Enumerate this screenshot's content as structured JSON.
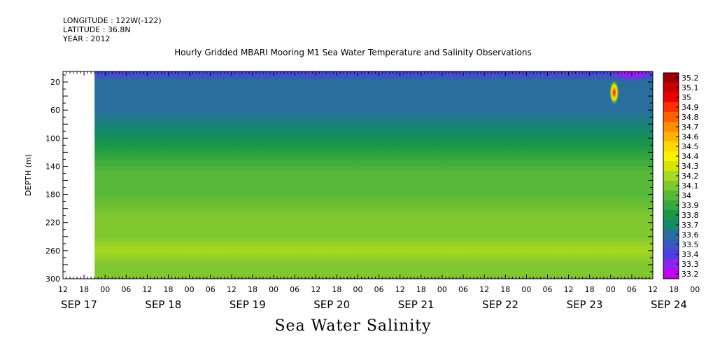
{
  "header": {
    "longitude": "LONGITUDE : 122W(-122)",
    "latitude": "LATITUDE : 36.8N",
    "year": "YEAR : 2012"
  },
  "chart_data": {
    "type": "heatmap",
    "title": "Hourly Gridded MBARI Mooring M1 Sea Water Temperature and Salinity Observations",
    "caption": "Sea Water Salinity",
    "ylabel": "DEPTH (m)",
    "ylim": [
      300,
      5
    ],
    "y_ticks": [
      "20",
      "60",
      "100",
      "140",
      "180",
      "220",
      "260",
      "300"
    ],
    "x_ticks": [
      "12",
      "18",
      "00",
      "06",
      "12",
      "18",
      "00",
      "06",
      "12",
      "18",
      "00",
      "06",
      "12",
      "18",
      "00",
      "06",
      "12",
      "18",
      "00",
      "06",
      "12",
      "18",
      "00",
      "06",
      "12",
      "18",
      "00",
      "06",
      "12",
      "18",
      "00",
      "06",
      "12"
    ],
    "x_dates": [
      "SEP 17",
      "SEP 18",
      "SEP 19",
      "SEP 20",
      "SEP 21",
      "SEP 22",
      "SEP 23",
      "SEP 24"
    ],
    "x_range": [
      "2012-09-17 12:00",
      "2012-09-24 12:00"
    ],
    "data_start": "2012-09-17 21:00",
    "colorbar_ticks": [
      "35.2",
      "35.1",
      "35",
      "34.9",
      "34.8",
      "34.7",
      "34.6",
      "34.5",
      "34.4",
      "34.3",
      "34.2",
      "34.1",
      "34",
      "33.9",
      "33.8",
      "33.7",
      "33.6",
      "33.5",
      "33.4",
      "33.3",
      "33.2"
    ],
    "colorbar_colors": [
      "#9b0000",
      "#c80000",
      "#ee0000",
      "#ff3000",
      "#ff6000",
      "#ff8c00",
      "#ffb400",
      "#ffd800",
      "#fff000",
      "#d6e600",
      "#a8d820",
      "#80c830",
      "#58b838",
      "#38a840",
      "#1a9848",
      "#138a6a",
      "#2a6e9e",
      "#3858c0",
      "#4c3ee0",
      "#8826f0",
      "#c000f0"
    ],
    "depth_profile": [
      {
        "depth": 5,
        "value": 33.45
      },
      {
        "depth": 20,
        "value": 33.58
      },
      {
        "depth": 60,
        "value": 33.62
      },
      {
        "depth": 90,
        "value": 33.68
      },
      {
        "depth": 110,
        "value": 33.76
      },
      {
        "depth": 130,
        "value": 33.86
      },
      {
        "depth": 150,
        "value": 33.96
      },
      {
        "depth": 180,
        "value": 34.03
      },
      {
        "depth": 210,
        "value": 34.07
      },
      {
        "depth": 240,
        "value": 34.15
      },
      {
        "depth": 260,
        "value": 34.2
      },
      {
        "depth": 280,
        "value": 34.12
      },
      {
        "depth": 300,
        "value": 34.08
      }
    ],
    "annotations": [
      {
        "type": "peak",
        "time": "2012-09-24 01:00",
        "depth": 35,
        "value": 35.0
      },
      {
        "type": "low",
        "time": "2012-09-24 06:00",
        "depth": 5,
        "value": 33.3
      }
    ]
  }
}
